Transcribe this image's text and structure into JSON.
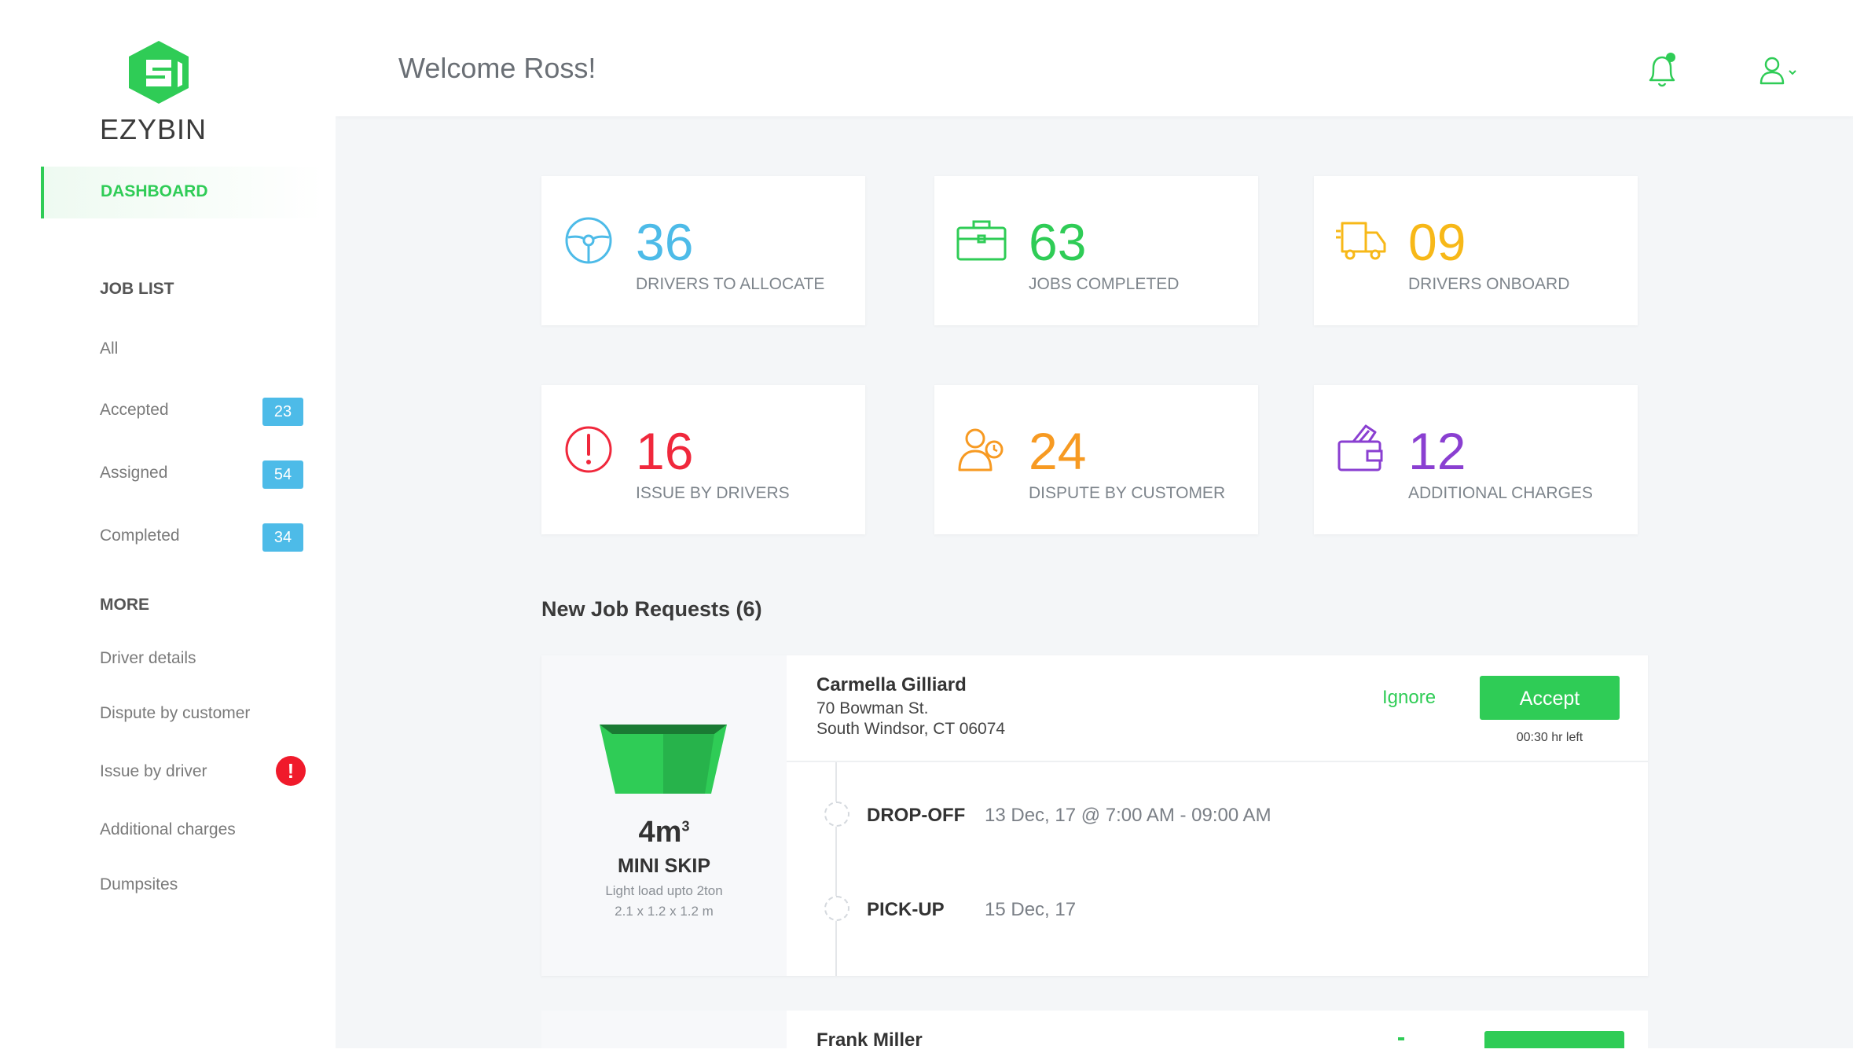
{
  "brand": {
    "name": "EZYBIN",
    "color": "#2fcc56"
  },
  "sidebar": {
    "dashboard_label": "DASHBOARD",
    "joblist_title": "JOB LIST",
    "items": [
      {
        "label": "All"
      },
      {
        "label": "Accepted",
        "badge": "23"
      },
      {
        "label": "Assigned",
        "badge": "54"
      },
      {
        "label": "Completed",
        "badge": "34"
      }
    ],
    "more_title": "MORE",
    "more_items": [
      {
        "label": "Driver details"
      },
      {
        "label": "Dispute by customer"
      },
      {
        "label": "Issue by driver",
        "alert": "!"
      },
      {
        "label": "Additional charges"
      },
      {
        "label": "Dumpsites"
      }
    ]
  },
  "header": {
    "welcome": "Welcome Ross!",
    "icons": [
      "bell-icon",
      "user-icon"
    ]
  },
  "stats": [
    {
      "value": "36",
      "label": "DRIVERS TO ALLOCATE",
      "color": "#4dbbe8",
      "icon": "steering-wheel-icon"
    },
    {
      "value": "63",
      "label": "JOBS COMPLETED",
      "color": "#2fcc56",
      "icon": "briefcase-icon"
    },
    {
      "value": "09",
      "label": "DRIVERS ONBOARD",
      "color": "#f7b818",
      "icon": "truck-icon"
    },
    {
      "value": "16",
      "label": "ISSUE BY DRIVERS",
      "color": "#f0283c",
      "icon": "alert-circle-icon"
    },
    {
      "value": "24",
      "label": "DISPUTE BY CUSTOMER",
      "color": "#f79a22",
      "icon": "dispute-users-icon"
    },
    {
      "value": "12",
      "label": "ADDITIONAL CHARGES",
      "color": "#8a3fd1",
      "icon": "wallet-icon"
    }
  ],
  "requests": {
    "title": "New Job Requests (6)",
    "jobs": [
      {
        "skip": {
          "volume": "4m",
          "volume_sup": "3",
          "name": "MINI SKIP",
          "desc1": "Light load upto 2ton",
          "desc2": "2.1 x 1.2 x 1.2 m"
        },
        "customer": "Carmella Gilliard",
        "address1": "70 Bowman St.",
        "address2": "South Windsor, CT 06074",
        "ignore_label": "Ignore",
        "accept_label": "Accept",
        "time_left": "00:30 hr left",
        "dropoff_label": "DROP-OFF",
        "dropoff_value": "13 Dec, 17 @ 7:00 AM - 09:00 AM",
        "pickup_label": "PICK-UP",
        "pickup_value": "15 Dec, 17"
      },
      {
        "customer": "Frank Miller"
      }
    ]
  }
}
